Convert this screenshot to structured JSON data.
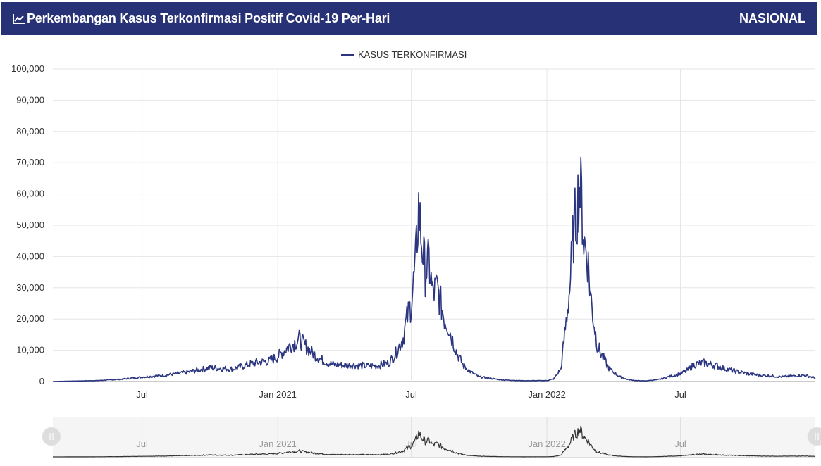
{
  "header": {
    "title": "Perkembangan Kasus Terkonfirmasi Positif Covid-19 Per-Hari",
    "scope": "NASIONAL",
    "icon": "line-chart-icon"
  },
  "colors": {
    "header_bg": "#273175",
    "series": "#2b3580",
    "navigator_series": "#333333",
    "grid": "#e6e6e6"
  },
  "chart_data": {
    "type": "line",
    "title": "",
    "xlabel": "",
    "ylabel": "",
    "x_axis": "date",
    "xlim": [
      "2020-03-02",
      "2022-12-31"
    ],
    "ylim": [
      0,
      100000
    ],
    "y_ticks": [
      0,
      10000,
      20000,
      30000,
      40000,
      50000,
      60000,
      70000,
      80000,
      90000,
      100000
    ],
    "y_tick_labels": [
      "0",
      "10,000",
      "20,000",
      "30,000",
      "40,000",
      "50,000",
      "60,000",
      "70,000",
      "80,000",
      "90,000",
      "100,000"
    ],
    "x_ticks": [
      "2020-07-01",
      "2021-01-01",
      "2021-07-01",
      "2022-01-01",
      "2022-07-01"
    ],
    "x_tick_labels": [
      "Jul",
      "Jan 2021",
      "Jul",
      "Jan 2022",
      "Jul"
    ],
    "grid": true,
    "legend": {
      "position": "top-center",
      "entries": [
        "KASUS TERKONFIRMASI"
      ]
    },
    "series": [
      {
        "name": "KASUS TERKONFIRMASI",
        "x": [
          "2020-03-02",
          "2020-04-01",
          "2020-05-01",
          "2020-06-01",
          "2020-07-01",
          "2020-08-01",
          "2020-09-01",
          "2020-10-01",
          "2020-11-01",
          "2020-12-01",
          "2020-12-20",
          "2021-01-01",
          "2021-01-15",
          "2021-01-30",
          "2021-02-15",
          "2021-03-01",
          "2021-03-15",
          "2021-04-01",
          "2021-04-15",
          "2021-05-01",
          "2021-05-15",
          "2021-06-01",
          "2021-06-10",
          "2021-06-20",
          "2021-06-25",
          "2021-07-01",
          "2021-07-07",
          "2021-07-11",
          "2021-07-15",
          "2021-07-20",
          "2021-07-25",
          "2021-07-30",
          "2021-08-05",
          "2021-08-10",
          "2021-08-15",
          "2021-08-20",
          "2021-08-25",
          "2021-09-01",
          "2021-09-10",
          "2021-09-20",
          "2021-10-01",
          "2021-11-01",
          "2021-12-01",
          "2022-01-01",
          "2022-01-10",
          "2022-01-20",
          "2022-01-25",
          "2022-02-01",
          "2022-02-06",
          "2022-02-10",
          "2022-02-14",
          "2022-02-17",
          "2022-02-20",
          "2022-02-25",
          "2022-03-01",
          "2022-03-05",
          "2022-03-10",
          "2022-03-15",
          "2022-03-20",
          "2022-03-25",
          "2022-04-01",
          "2022-04-10",
          "2022-04-20",
          "2022-05-01",
          "2022-05-15",
          "2022-06-01",
          "2022-06-15",
          "2022-07-01",
          "2022-07-10",
          "2022-07-20",
          "2022-08-01",
          "2022-08-10",
          "2022-08-20",
          "2022-09-01",
          "2022-09-15",
          "2022-10-01",
          "2022-10-15",
          "2022-11-01",
          "2022-11-15",
          "2022-12-01",
          "2022-12-15",
          "2022-12-31"
        ],
        "values": [
          0,
          150,
          300,
          700,
          1400,
          2000,
          3000,
          4400,
          4000,
          6000,
          6500,
          8000,
          11000,
          13500,
          9500,
          7000,
          5500,
          5200,
          5300,
          5000,
          5000,
          6000,
          9000,
          14000,
          20000,
          25000,
          38000,
          56000,
          45000,
          35000,
          38000,
          28000,
          30000,
          25000,
          20000,
          18000,
          14000,
          9000,
          5000,
          3000,
          1500,
          500,
          250,
          300,
          800,
          4000,
          15000,
          30000,
          48000,
          54000,
          63000,
          58000,
          45000,
          40000,
          28000,
          20000,
          12000,
          9000,
          7000,
          4500,
          3000,
          1500,
          700,
          300,
          200,
          600,
          1500,
          2500,
          3500,
          5500,
          6000,
          5500,
          5000,
          4000,
          3200,
          2500,
          2000,
          1800,
          1500,
          1800,
          2000,
          1200
        ]
      }
    ],
    "navigator": {
      "x_tick_labels": [
        "Jul",
        "Jan 2021",
        "Jul",
        "Jan 2022",
        "Jul"
      ]
    }
  }
}
